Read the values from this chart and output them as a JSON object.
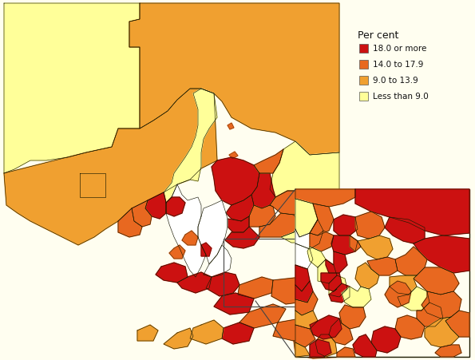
{
  "legend_title": "Per cent",
  "legend_items": [
    {
      "label": "18.0 or more",
      "color": "#cc1111"
    },
    {
      "label": "14.0 to 17.9",
      "color": "#e86820"
    },
    {
      "label": "9.0 to 13.9",
      "color": "#f0a030"
    },
    {
      "label": "Less than 9.0",
      "color": "#ffff99"
    }
  ],
  "bg_color": "#fffef0",
  "border_color": "#1a1a00",
  "border_lw": 0.45
}
